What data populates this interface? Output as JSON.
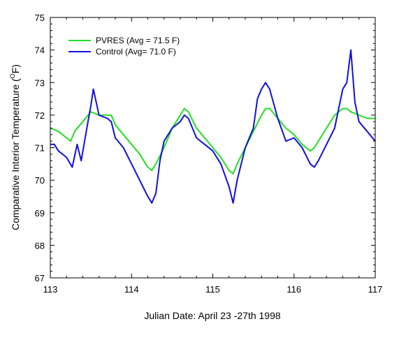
{
  "chart_data": {
    "type": "line",
    "title": "",
    "xlabel": "Julian Date: April 23 -27th 1998",
    "ylabel_prefix": "Comparative Interior Temperature (",
    "ylabel_sup": "O",
    "ylabel_suffix": "F)",
    "xlim": [
      113,
      117
    ],
    "ylim": [
      67,
      75
    ],
    "xticks": [
      113,
      114,
      115,
      116,
      117
    ],
    "yticks": [
      67,
      68,
      69,
      70,
      71,
      72,
      73,
      74,
      75
    ],
    "grid": false,
    "legend_position": "top-left",
    "series": [
      {
        "name": "PVRES (Avg = 71.5 F)",
        "color": "#22e022",
        "x": [
          113.0,
          113.1,
          113.2,
          113.25,
          113.3,
          113.4,
          113.5,
          113.6,
          113.7,
          113.75,
          113.8,
          113.9,
          114.0,
          114.1,
          114.2,
          114.25,
          114.3,
          114.4,
          114.5,
          114.6,
          114.65,
          114.7,
          114.8,
          114.9,
          115.0,
          115.1,
          115.2,
          115.25,
          115.3,
          115.4,
          115.5,
          115.6,
          115.65,
          115.7,
          115.8,
          115.9,
          116.0,
          116.1,
          116.2,
          116.25,
          116.3,
          116.4,
          116.5,
          116.6,
          116.65,
          116.7,
          116.8,
          116.9,
          117.0
        ],
        "y": [
          71.6,
          71.5,
          71.3,
          71.2,
          71.5,
          71.8,
          72.1,
          72.0,
          72.0,
          72.0,
          71.7,
          71.4,
          71.1,
          70.8,
          70.4,
          70.3,
          70.5,
          71.0,
          71.6,
          72.0,
          72.2,
          72.1,
          71.6,
          71.3,
          71.0,
          70.7,
          70.3,
          70.2,
          70.5,
          71.0,
          71.5,
          72.0,
          72.2,
          72.2,
          71.9,
          71.6,
          71.4,
          71.1,
          70.9,
          71.0,
          71.2,
          71.6,
          72.0,
          72.2,
          72.2,
          72.1,
          72.0,
          71.9,
          71.9
        ]
      },
      {
        "name": "Control (Avg= 71.0 F)",
        "color": "#1010dd",
        "x": [
          113.0,
          113.05,
          113.1,
          113.2,
          113.27,
          113.33,
          113.38,
          113.45,
          113.5,
          113.53,
          113.6,
          113.7,
          113.75,
          113.8,
          113.9,
          114.0,
          114.1,
          114.2,
          114.25,
          114.3,
          114.35,
          114.4,
          114.5,
          114.6,
          114.65,
          114.7,
          114.75,
          114.8,
          114.9,
          115.0,
          115.1,
          115.2,
          115.25,
          115.3,
          115.4,
          115.5,
          115.55,
          115.6,
          115.65,
          115.7,
          115.8,
          115.9,
          116.0,
          116.1,
          116.2,
          116.25,
          116.3,
          116.4,
          116.5,
          116.55,
          116.6,
          116.65,
          116.7,
          116.75,
          116.8,
          116.9,
          117.0
        ],
        "y": [
          71.1,
          71.1,
          70.9,
          70.7,
          70.4,
          71.1,
          70.6,
          71.6,
          72.3,
          72.8,
          72.0,
          71.9,
          71.8,
          71.3,
          71.0,
          70.5,
          70.0,
          69.5,
          69.3,
          69.6,
          70.6,
          71.2,
          71.6,
          71.8,
          72.0,
          71.9,
          71.6,
          71.3,
          71.1,
          70.9,
          70.5,
          69.8,
          69.3,
          70.0,
          71.0,
          71.6,
          72.5,
          72.8,
          73.0,
          72.8,
          71.9,
          71.2,
          71.3,
          71.0,
          70.5,
          70.4,
          70.6,
          71.1,
          71.6,
          72.2,
          72.8,
          73.0,
          74.0,
          72.4,
          71.8,
          71.5,
          71.2
        ]
      }
    ]
  }
}
